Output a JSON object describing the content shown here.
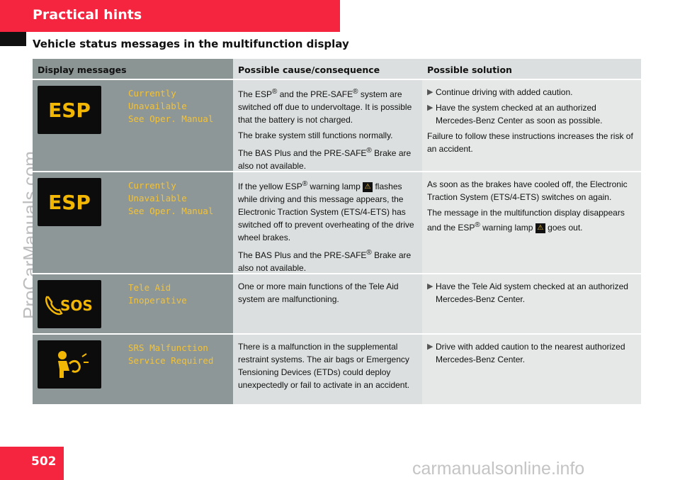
{
  "header": {
    "title": "Practical hints"
  },
  "subtitle": "Vehicle status messages in the multifunction display",
  "watermarks": {
    "left": "ProCarManuals.com",
    "bottom": "carmanualsonline.info"
  },
  "table": {
    "headers": [
      "Display messages",
      "Possible cause/consequence",
      "Possible solution"
    ],
    "rows": [
      {
        "icon": {
          "name": "esp-icon",
          "text": "ESP"
        },
        "message": [
          "Currently",
          "Unavailable",
          "See Oper. Manual"
        ],
        "cause": {
          "p1a": "The ESP",
          "sup1": "®",
          "p1b": " and the PRE-SAFE",
          "sup2": "®",
          "p1c": " system are switched off due to undervoltage. It is possible that the battery is not charged.",
          "p2": "The brake system still functions normally.",
          "p3a": "The BAS Plus and the PRE-SAFE",
          "sup3": "®",
          "p3b": " Brake are also not available."
        },
        "solution": {
          "b1": "Continue driving with added caution.",
          "b2": "Have the system checked at an authorized Mercedes-Benz Center as soon as possible.",
          "p": "Failure to follow these instructions increases the risk of an accident."
        }
      },
      {
        "icon": {
          "name": "esp-icon",
          "text": "ESP"
        },
        "message": [
          "Currently",
          "Unavailable",
          "See Oper. Manual"
        ],
        "cause": {
          "p1a": "If the yellow ESP",
          "sup1": "®",
          "p1b": " warning lamp ",
          "warn": "⚠",
          "p1c": " flashes while driving and this message appears, the Electronic Traction System (ETS/4-ETS) has switched off to prevent overheating of the drive wheel brakes.",
          "p2a": "The BAS Plus and the PRE-SAFE",
          "sup2": "®",
          "p2b": " Brake are also not available."
        },
        "solution": {
          "p1": "As soon as the brakes have cooled off, the Electronic Traction System (ETS/4-ETS) switches on again.",
          "p2a": "The message in the multifunction display disappears and the ESP",
          "sup": "®",
          "p2b": " warning lamp ",
          "warn": "⚠",
          "p2c": " goes out."
        }
      },
      {
        "icon": {
          "name": "sos-icon",
          "text": "SOS"
        },
        "message": [
          "Tele Aid",
          "Inoperative"
        ],
        "cause": {
          "p": "One or more main functions of the Tele Aid system are malfunctioning."
        },
        "solution": {
          "b1": "Have the Tele Aid system checked at an authorized Mercedes-Benz Center."
        }
      },
      {
        "icon": {
          "name": "srs-airbag-icon",
          "text": ""
        },
        "message": [
          "SRS Malfunction",
          "Service Required"
        ],
        "cause": {
          "p": "There is a malfunction in the supplemental restraint systems. The air bags or Emergency Tensioning Devices (ETDs) could deploy unexpectedly or fail to activate in an accident."
        },
        "solution": {
          "b1": "Drive with added caution to the nearest authorized Mercedes-Benz Center."
        }
      }
    ]
  },
  "page_number": "502",
  "colors": {
    "accent": "#f5243f",
    "display_text": "#f2c23a",
    "icon_yellow": "#f2b705"
  },
  "bullet_glyph": "▶"
}
